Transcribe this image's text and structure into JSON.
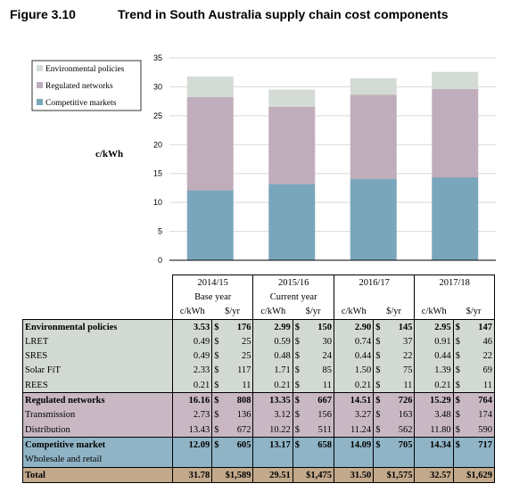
{
  "figure": {
    "number": "Figure 3.10",
    "title": "Trend in South Australia supply chain cost components"
  },
  "chart_data": {
    "type": "bar",
    "stacked": true,
    "ylabel": "c/kWh",
    "ylim": [
      0,
      35
    ],
    "yticks": [
      0,
      5,
      10,
      15,
      20,
      25,
      30,
      35
    ],
    "grid": true,
    "legend_position": "top-left",
    "categories": [
      "2014/15",
      "2015/16",
      "2016/17",
      "2017/18"
    ],
    "series": [
      {
        "name": "Competitive markets",
        "color": "#7aa6bb",
        "values": [
          12.09,
          13.17,
          14.09,
          14.34
        ]
      },
      {
        "name": "Regulated networks",
        "color": "#c0adbb",
        "values": [
          16.16,
          13.35,
          14.51,
          15.29
        ]
      },
      {
        "name": "Environmental policies",
        "color": "#d3dbd4",
        "values": [
          3.53,
          2.99,
          2.9,
          2.95
        ]
      }
    ]
  },
  "table": {
    "periods": [
      {
        "year": "2014/15",
        "note": "Base year"
      },
      {
        "year": "2015/16",
        "note": "Current year"
      },
      {
        "year": "2016/17",
        "note": ""
      },
      {
        "year": "2017/18",
        "note": ""
      }
    ],
    "unit_ckwh": "c/kWh",
    "unit_yr": "$/yr",
    "dollar": "$",
    "rows": [
      {
        "label": "Environmental policies",
        "values": [
          "3.53",
          "176",
          "2.99",
          "150",
          "2.90",
          "145",
          "2.95",
          "147"
        ]
      },
      {
        "label": "LRET",
        "values": [
          "0.49",
          "25",
          "0.59",
          "30",
          "0.74",
          "37",
          "0.91",
          "46"
        ]
      },
      {
        "label": "SRES",
        "values": [
          "0.49",
          "25",
          "0.48",
          "24",
          "0.44",
          "22",
          "0.44",
          "22"
        ]
      },
      {
        "label": "Solar FiT",
        "values": [
          "2.33",
          "117",
          "1.71",
          "85",
          "1.50",
          "75",
          "1.39",
          "69"
        ]
      },
      {
        "label": "REES",
        "values": [
          "0.21",
          "11",
          "0.21",
          "11",
          "0.21",
          "11",
          "0.21",
          "11"
        ]
      },
      {
        "label": "Regulated networks",
        "values": [
          "16.16",
          "808",
          "13.35",
          "667",
          "14.51",
          "726",
          "15.29",
          "764"
        ]
      },
      {
        "label": "Transmission",
        "values": [
          "2.73",
          "136",
          "3.12",
          "156",
          "3.27",
          "163",
          "3.48",
          "174"
        ]
      },
      {
        "label": "Distribution",
        "values": [
          "13.43",
          "672",
          "10.22",
          "511",
          "11.24",
          "562",
          "11.80",
          "590"
        ]
      },
      {
        "label": "Competitive market",
        "values": [
          "12.09",
          "605",
          "13.17",
          "658",
          "14.09",
          "705",
          "14.34",
          "717"
        ]
      },
      {
        "label": "Wholesale and retail"
      },
      {
        "label": "Total",
        "values": [
          "31.78",
          "$1,589",
          "29.51",
          "$1,475",
          "31.50",
          "$1,575",
          "32.57",
          "$1,629"
        ]
      }
    ]
  }
}
